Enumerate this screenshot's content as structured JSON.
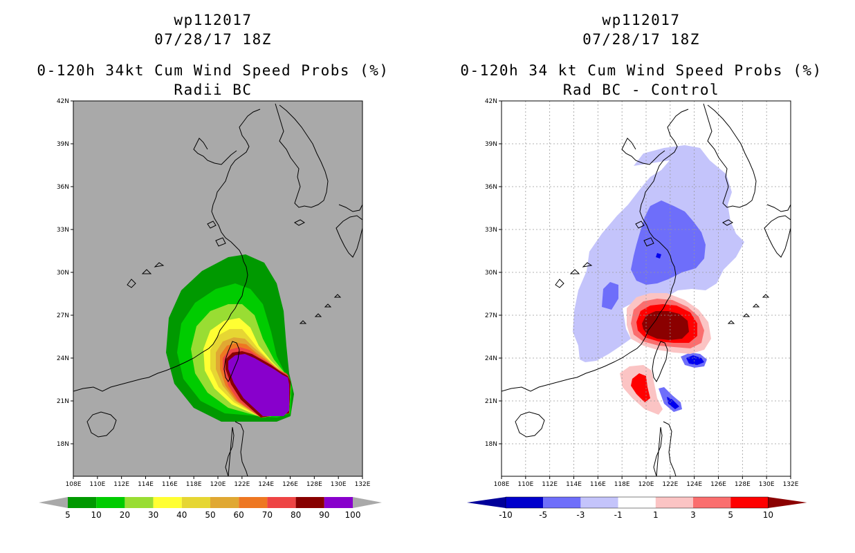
{
  "left_panel": {
    "storm_id": "wp112017",
    "datetime": "07/28/17 18Z",
    "title": "0-120h 34kt Cum Wind Speed Probs (%)",
    "subtitle": "Radii BC",
    "background_color": "#a9a9a9",
    "x_ticks": [
      "108E",
      "110E",
      "112E",
      "114E",
      "116E",
      "118E",
      "120E",
      "122E",
      "124E",
      "126E",
      "128E",
      "130E",
      "132E"
    ],
    "y_ticks": [
      "42N",
      "39N",
      "36N",
      "33N",
      "30N",
      "27N",
      "24N",
      "21N",
      "18N"
    ],
    "colorbar": {
      "colors": [
        "#009900",
        "#00cc00",
        "#99dd33",
        "#ffff33",
        "#e6d633",
        "#e0a833",
        "#ee7722",
        "#ee4444",
        "#880000",
        "#8800cc"
      ],
      "labels": [
        "5",
        "10",
        "20",
        "30",
        "40",
        "50",
        "60",
        "70",
        "80",
        "90",
        "100"
      ]
    }
  },
  "right_panel": {
    "storm_id": "wp112017",
    "datetime": "07/28/17 18Z",
    "title": "0-120h 34 kt Cum Wind Speed Probs (%)",
    "subtitle": "Rad BC - Control",
    "x_ticks": [
      "108E",
      "110E",
      "112E",
      "114E",
      "116E",
      "118E",
      "120E",
      "122E",
      "124E",
      "126E",
      "128E",
      "130E",
      "132E"
    ],
    "y_ticks": [
      "42N",
      "39N",
      "36N",
      "33N",
      "30N",
      "27N",
      "24N",
      "21N",
      "18N"
    ],
    "colorbar": {
      "colors": [
        "#0000cc",
        "#6e6efa",
        "#c4c4fb",
        "#ffffff",
        "#fbc4c4",
        "#fa6e6e",
        "#ff0000"
      ],
      "end_left_color": "#00009a",
      "end_right_color": "#8b0000",
      "labels": [
        "-10",
        "-5",
        "-3",
        "-1",
        "1",
        "3",
        "5",
        "10"
      ]
    }
  }
}
